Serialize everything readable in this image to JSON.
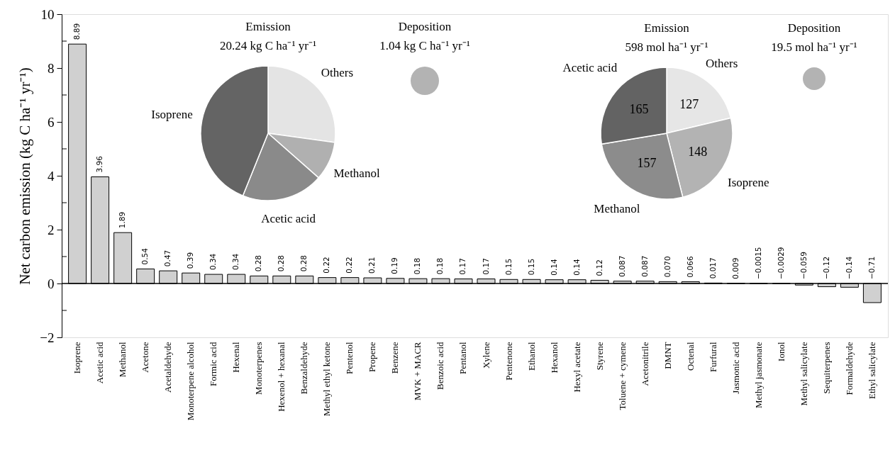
{
  "chart_data": [
    {
      "type": "bar",
      "ylabel": "Net carbon emission (kg C ha⁻¹ yr⁻¹)",
      "color": "#d0d0d0",
      "categories": [
        "Isoprene",
        "Acetic acid",
        "Methanol",
        "Acetone",
        "Acetaldehyde",
        "Monoterpene alcohol",
        "Formic acid",
        "Hexenal",
        "Monoterpenes",
        "Hexenol + hexanal",
        "Benzaldehyde",
        "Methyl ethyl ketone",
        "Pentenol",
        "Propene",
        "Benzene",
        "MVK + MACR",
        "Benzoic acid",
        "Pentanol",
        "Xylene",
        "Pentenone",
        "Ethanol",
        "Hexanol",
        "Hexyl acetate",
        "Styrene",
        "Toluene + cymene",
        "Acetonitrile",
        "DMNT",
        "Octenal",
        "Furfural",
        "Jasmonic acid",
        "Methyl jasmonate",
        "Ionol",
        "Methyl salicylate",
        "Sequiterpenes",
        "Formaldehyde",
        "Ethyl salicylate"
      ],
      "values": [
        8.89,
        3.96,
        1.89,
        0.54,
        0.47,
        0.39,
        0.34,
        0.34,
        0.28,
        0.28,
        0.28,
        0.22,
        0.22,
        0.21,
        0.19,
        0.18,
        0.18,
        0.17,
        0.17,
        0.15,
        0.15,
        0.14,
        0.14,
        0.12,
        0.087,
        0.087,
        0.07,
        0.066,
        0.017,
        0.009,
        -0.0015,
        -0.0029,
        -0.059,
        -0.12,
        -0.14,
        -0.71
      ],
      "value_labels": [
        "8.89",
        "3.96",
        "1.89",
        "0.54",
        "0.47",
        "0.39",
        "0.34",
        "0.34",
        "0.28",
        "0.28",
        "0.28",
        "0.22",
        "0.22",
        "0.21",
        "0.19",
        "0.18",
        "0.18",
        "0.17",
        "0.17",
        "0.15",
        "0.15",
        "0.14",
        "0.14",
        "0.12",
        "0.087",
        "0.087",
        "0.070",
        "0.066",
        "0.017",
        "0.009",
        "−0.0015",
        "−0.0029",
        "−0.059",
        "−0.12",
        "−0.14",
        "−0.71"
      ],
      "ylim": [
        -2,
        10
      ],
      "yticks": [
        {
          "value": -2,
          "label": "−2"
        },
        {
          "value": -1,
          "label": null
        },
        0,
        {
          "value": 1,
          "label": null
        },
        2,
        {
          "value": 3,
          "label": null
        },
        4,
        {
          "value": 5,
          "label": null
        },
        6,
        {
          "value": 7,
          "label": null
        },
        8,
        {
          "value": 9,
          "label": null
        },
        10
      ],
      "ref_lines": [
        {
          "axis": "y",
          "value": 0
        }
      ],
      "grid": false
    },
    {
      "type": "pie",
      "title": "Emission",
      "subtitle": "20.24 kg C ha⁻¹ yr⁻¹",
      "categories": [
        "Others",
        "Methanol",
        "Acetic acid",
        "Isoprene"
      ],
      "values": [
        27.2,
        9.3,
        19.6,
        43.9
      ],
      "colors": [
        "#e4e4e4",
        "#b0b0b0",
        "#8a8a8a",
        "#646464"
      ],
      "legend": false
    },
    {
      "type": "pie",
      "title": "Deposition",
      "subtitle": "1.04 kg C ha⁻¹ yr⁻¹",
      "categories": [
        null
      ],
      "values": [
        100
      ],
      "colors": [
        "#b3b3b3"
      ],
      "legend": false
    },
    {
      "type": "pie",
      "title": "Emission",
      "subtitle": "598 mol ha⁻¹ yr⁻¹",
      "categories": [
        "Others",
        "Isoprene",
        "Methanol",
        "Acetic acid"
      ],
      "values": [
        127,
        148,
        157,
        165
      ],
      "colors": [
        "#e6e6e6",
        "#b3b3b3",
        "#8c8c8c",
        "#636363"
      ],
      "data_labels": true,
      "legend": false
    },
    {
      "type": "pie",
      "title": "Deposition",
      "subtitle": "19.5 mol ha⁻¹ yr⁻¹",
      "categories": [
        null
      ],
      "values": [
        100
      ],
      "colors": [
        "#b3b3b3"
      ],
      "legend": false
    }
  ]
}
